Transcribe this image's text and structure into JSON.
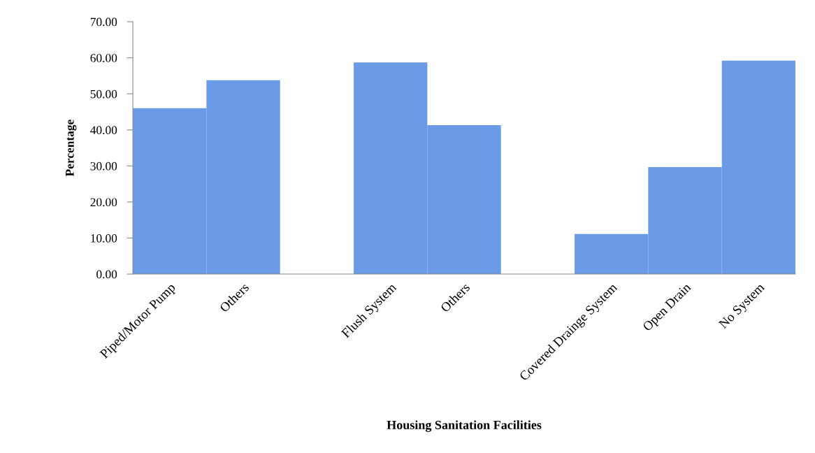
{
  "chart_data": {
    "type": "bar",
    "xlabel": "Housing Sanitation Facilities",
    "ylabel": "Percentage",
    "categories": [
      "Piped/Motor Pump",
      "Others",
      null,
      "Flush System",
      "Others",
      null,
      "Covered Drainge System",
      "Open Drain",
      "No System"
    ],
    "values": [
      46.0,
      53.8,
      null,
      58.7,
      41.3,
      null,
      11.1,
      29.7,
      59.2
    ],
    "color": "#6b9be6",
    "ylim": [
      0,
      70
    ],
    "yticks": [
      {
        "value": 0,
        "label": "0.00"
      },
      {
        "value": 10,
        "label": "10.00"
      },
      {
        "value": 20,
        "label": "20.00"
      },
      {
        "value": 30,
        "label": "30.00"
      },
      {
        "value": 40,
        "label": "40.00"
      },
      {
        "value": 50,
        "label": "50.00"
      },
      {
        "value": 60,
        "label": "60.00"
      },
      {
        "value": 70,
        "label": "70.00"
      }
    ],
    "grid": false,
    "legend": false
  }
}
